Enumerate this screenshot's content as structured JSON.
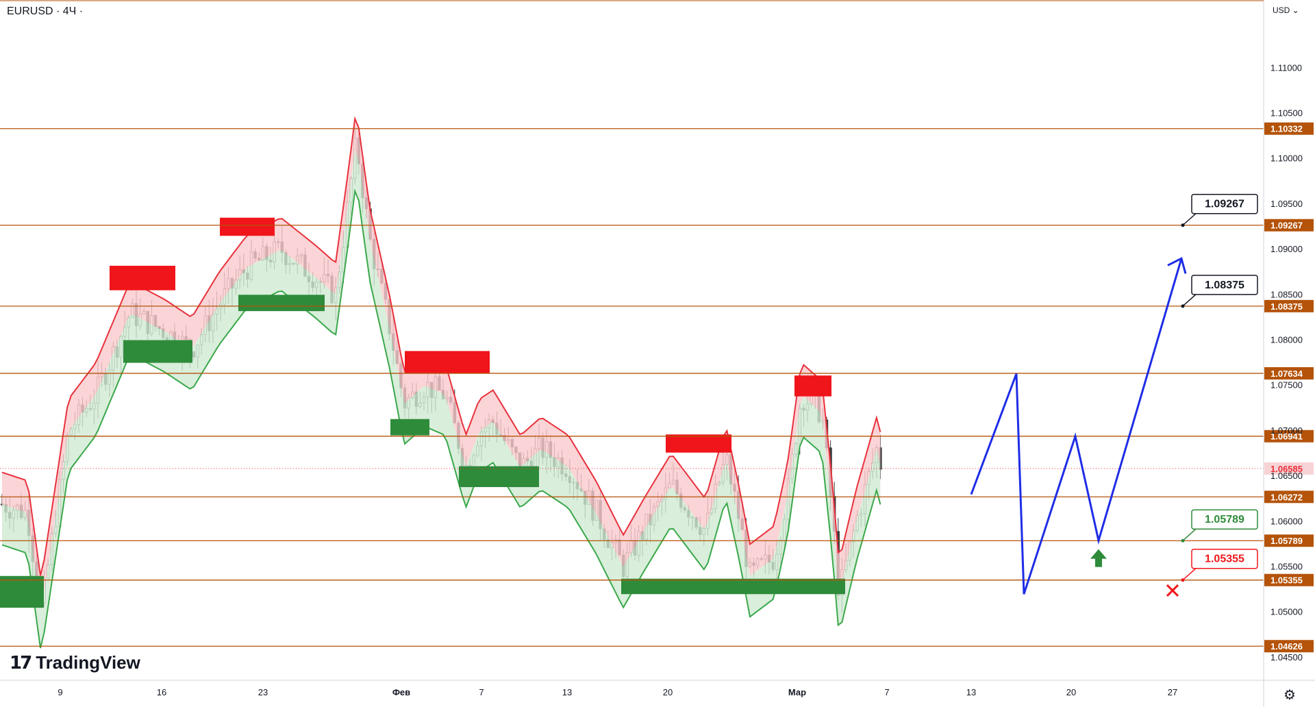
{
  "header": {
    "ticker": "EURUSD · 4Ч ·",
    "currency": "USD"
  },
  "logo": {
    "mark": "17",
    "text": "TradingView"
  },
  "colors": {
    "hline": "#b45309",
    "green_zone": "#2e8b3a",
    "red_zone": "#f0151a",
    "blue_path": "#1e2de6",
    "up_fill": "#cfead2",
    "down_fill": "#f9c9cc"
  },
  "chart_data": {
    "type": "candlestick",
    "symbol": "EURUSD",
    "timeframe": "4Ч",
    "ylim": [
      1.0425,
      1.1175
    ],
    "y_ticks": [
      "1.04500",
      "1.05000",
      "1.05500",
      "1.06000",
      "1.06500",
      "1.07000",
      "1.07500",
      "1.08000",
      "1.08500",
      "1.09000",
      "1.09500",
      "1.10000",
      "1.10500",
      "1.11000"
    ],
    "x_ticks": [
      "9",
      "16",
      "23",
      "Фев",
      "7",
      "13",
      "20",
      "Мар",
      "7",
      "13",
      "20",
      "27"
    ],
    "horizontal_levels": [
      "1.10332",
      "1.09267",
      "1.08375",
      "1.07634",
      "1.06941",
      "1.06272",
      "1.05789",
      "1.05355",
      "1.04626"
    ],
    "current_price": "1.06585",
    "callouts": [
      {
        "label": "1.09267",
        "target": "1.09267",
        "color": "#131722"
      },
      {
        "label": "1.08375",
        "target": "1.08375",
        "color": "#131722"
      },
      {
        "label": "1.05789",
        "target": "1.05789",
        "color": "#2e8b3a"
      },
      {
        "label": "1.05355",
        "target": "1.05355",
        "color": "#f0151a"
      }
    ],
    "forecast_path": [
      1.063,
      1.0763,
      1.052,
      1.0694,
      1.0579,
      1.089
    ],
    "signals": [
      "buy-arrow",
      "stop-cross"
    ]
  }
}
